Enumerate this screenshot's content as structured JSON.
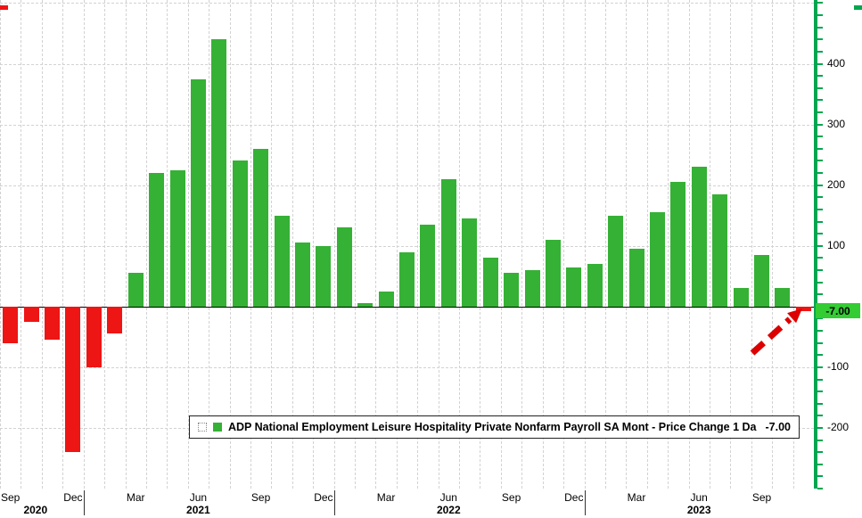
{
  "chart_data": {
    "type": "bar",
    "title": "",
    "x": [
      "Sep 2020",
      "Oct 2020",
      "Nov 2020",
      "Dec 2020",
      "Jan 2021",
      "Feb 2021",
      "Mar 2021",
      "Apr 2021",
      "May 2021",
      "Jun 2021",
      "Jul 2021",
      "Aug 2021",
      "Sep 2021",
      "Oct 2021",
      "Nov 2021",
      "Dec 2021",
      "Jan 2022",
      "Feb 2022",
      "Mar 2022",
      "Apr 2022",
      "May 2022",
      "Jun 2022",
      "Jul 2022",
      "Aug 2022",
      "Sep 2022",
      "Oct 2022",
      "Nov 2022",
      "Dec 2022",
      "Jan 2023",
      "Feb 2023",
      "Mar 2023",
      "Apr 2023",
      "May 2023",
      "Jun 2023",
      "Jul 2023",
      "Aug 2023",
      "Sep 2023",
      "Oct 2023",
      "Nov 2023"
    ],
    "series": [
      {
        "name": "ADP National Employment Leisure Hospitality Private Nonfarm Payroll SA Mont - Price Change 1 Da",
        "values": [
          -60,
          -25,
          -55,
          -240,
          -100,
          -45,
          55,
          220,
          225,
          375,
          440,
          240,
          260,
          150,
          105,
          100,
          130,
          5,
          25,
          90,
          135,
          210,
          145,
          80,
          55,
          60,
          110,
          65,
          70,
          150,
          95,
          155,
          205,
          230,
          185,
          30,
          85,
          30,
          -7
        ]
      }
    ],
    "x_ticks": [
      {
        "index": 0,
        "label": "Sep"
      },
      {
        "index": 3,
        "label": "Dec"
      },
      {
        "index": 6,
        "label": "Mar"
      },
      {
        "index": 9,
        "label": "Jun"
      },
      {
        "index": 12,
        "label": "Sep"
      },
      {
        "index": 15,
        "label": "Dec"
      },
      {
        "index": 18,
        "label": "Mar"
      },
      {
        "index": 21,
        "label": "Jun"
      },
      {
        "index": 24,
        "label": "Sep"
      },
      {
        "index": 27,
        "label": "Dec"
      },
      {
        "index": 30,
        "label": "Mar"
      },
      {
        "index": 33,
        "label": "Jun"
      },
      {
        "index": 36,
        "label": "Sep"
      }
    ],
    "year_ticks": [
      {
        "index": 1.2,
        "label": "2020"
      },
      {
        "index": 9,
        "label": "2021"
      },
      {
        "index": 21,
        "label": "2022"
      },
      {
        "index": 33,
        "label": "2023"
      }
    ],
    "year_separator_indices": [
      4,
      16,
      28
    ],
    "yticks": [
      400,
      300,
      200,
      100,
      -100,
      -200
    ],
    "ygrid": [
      500,
      400,
      300,
      200,
      100,
      -100,
      -200,
      -300
    ],
    "ylim": [
      -300,
      505
    ],
    "grid": true,
    "legend_position": "bottom-center",
    "last_value": -7,
    "last_value_label": "-7.00",
    "colors": {
      "positive": "#35b135",
      "negative": "#ee1515",
      "axis_green": "#00a651",
      "badge_bg": "#33cc33",
      "grid": "#d2d2d2",
      "zero_line": "#000000",
      "arrow": "#dd0000"
    }
  },
  "legend": {
    "label": "ADP National Employment Leisure Hospitality Private Nonfarm Payroll SA Mont - Price Change 1 Da",
    "value": "-7.00"
  }
}
